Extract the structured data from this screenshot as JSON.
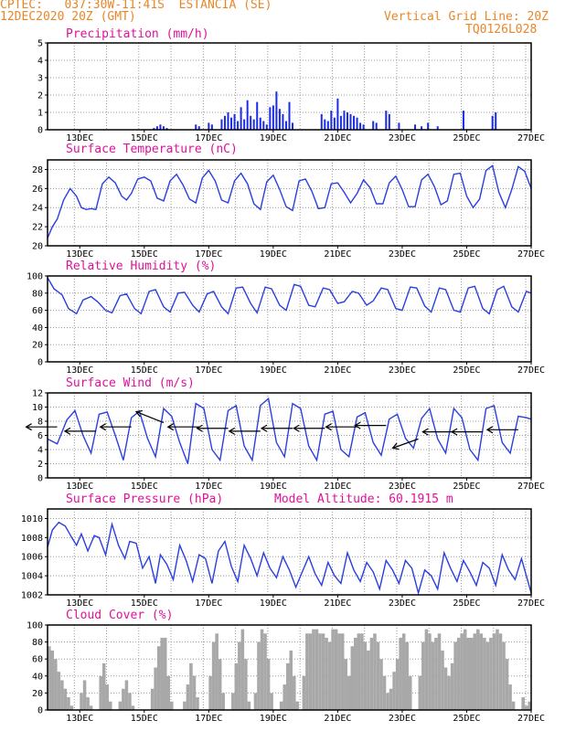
{
  "header": {
    "line1": "CPTEC:   037:30W-11:41S  ESTANCIA (SE)",
    "line2": "12DEC2020 20Z (GMT)",
    "grid_note": "Vertical Grid Line: 20Z",
    "code": "TQ0126L028"
  },
  "x_axis": {
    "day_labels": [
      "13DEC",
      "15DEC",
      "17DEC",
      "19DEC",
      "21DEC",
      "23DEC",
      "25DEC",
      "27DEC"
    ],
    "day_positions": [
      13,
      15,
      17,
      19,
      21,
      23,
      25,
      27
    ],
    "range": [
      12.0,
      27.0
    ],
    "vertical_grid_days": [
      12.83,
      13.83,
      14.83,
      15.83,
      16.83,
      17.83,
      18.83,
      19.83,
      20.83,
      21.83,
      22.83,
      23.83,
      24.83,
      25.83,
      26.83
    ]
  },
  "colors": {
    "header": "#e8862a",
    "title": "#e0119a",
    "line": "#2a3fe0",
    "bar": "#1a2ce6",
    "cloud": "#a8a8a8",
    "grid": "#9a9a9a",
    "wind_arrow": "#000000"
  },
  "chart_data": [
    {
      "type": "bar",
      "title": "Precipitation (mm/h)",
      "ylim": [
        0,
        5
      ],
      "yticks": [
        0,
        1,
        2,
        3,
        4,
        5
      ],
      "x": [
        15.3,
        15.4,
        15.5,
        15.6,
        15.7,
        16.6,
        16.7,
        17.0,
        17.1,
        17.4,
        17.5,
        17.6,
        17.7,
        17.8,
        17.9,
        18.0,
        18.1,
        18.2,
        18.3,
        18.4,
        18.5,
        18.6,
        18.7,
        18.8,
        18.9,
        19.0,
        19.1,
        19.2,
        19.3,
        19.4,
        19.5,
        19.6,
        20.5,
        20.6,
        20.7,
        20.8,
        20.9,
        21.0,
        21.1,
        21.2,
        21.3,
        21.4,
        21.5,
        21.6,
        21.7,
        21.8,
        22.1,
        22.2,
        22.5,
        22.6,
        22.9,
        23.4,
        23.6,
        23.8,
        24.1,
        24.9,
        25.8,
        25.9
      ],
      "values": [
        0.1,
        0.2,
        0.3,
        0.2,
        0.1,
        0.3,
        0.2,
        0.4,
        0.3,
        0.6,
        0.8,
        1.0,
        0.7,
        0.9,
        0.5,
        1.3,
        0.6,
        1.7,
        0.8,
        0.6,
        1.6,
        0.7,
        0.5,
        0.3,
        1.3,
        1.4,
        2.2,
        1.2,
        0.9,
        0.5,
        1.6,
        0.4,
        0.9,
        0.6,
        0.5,
        1.1,
        0.7,
        1.8,
        0.8,
        1.1,
        1.0,
        0.9,
        0.8,
        0.7,
        0.4,
        0.3,
        0.5,
        0.4,
        1.1,
        0.9,
        0.4,
        0.3,
        0.2,
        0.4,
        0.2,
        1.1,
        0.8,
        1.0
      ]
    },
    {
      "type": "line",
      "title": "Surface Temperature (nC)",
      "ylim": [
        20,
        29
      ],
      "yticks": [
        20,
        22,
        24,
        26,
        28
      ],
      "x": [
        12.0,
        12.15,
        12.3,
        12.5,
        12.7,
        12.9,
        13.05,
        13.2,
        13.35,
        13.5,
        13.7,
        13.9,
        14.1,
        14.3,
        14.45,
        14.6,
        14.8,
        15.0,
        15.2,
        15.4,
        15.6,
        15.8,
        16.0,
        16.2,
        16.4,
        16.6,
        16.8,
        17.0,
        17.2,
        17.4,
        17.6,
        17.8,
        18.0,
        18.2,
        18.4,
        18.6,
        18.8,
        19.0,
        19.2,
        19.4,
        19.6,
        19.8,
        20.0,
        20.2,
        20.4,
        20.6,
        20.8,
        21.0,
        21.2,
        21.4,
        21.6,
        21.8,
        22.0,
        22.2,
        22.4,
        22.6,
        22.8,
        23.0,
        23.2,
        23.4,
        23.6,
        23.8,
        24.0,
        24.2,
        24.4,
        24.6,
        24.8,
        25.0,
        25.2,
        25.4,
        25.6,
        25.8,
        26.0,
        26.2,
        26.4,
        26.6,
        26.8,
        27.0
      ],
      "values": [
        20.8,
        22.0,
        22.8,
        24.8,
        26.0,
        25.2,
        24.0,
        23.8,
        23.9,
        23.8,
        26.5,
        27.2,
        26.6,
        25.2,
        24.8,
        25.5,
        27.0,
        27.2,
        26.8,
        25.0,
        24.7,
        26.8,
        27.5,
        26.4,
        24.9,
        24.5,
        27.1,
        27.9,
        26.8,
        24.8,
        24.5,
        26.8,
        27.6,
        26.5,
        24.4,
        23.8,
        26.7,
        27.4,
        25.9,
        24.1,
        23.7,
        26.8,
        27.0,
        25.7,
        23.9,
        24.0,
        26.5,
        26.6,
        25.6,
        24.5,
        25.5,
        26.9,
        26.1,
        24.4,
        24.4,
        26.6,
        27.3,
        25.9,
        24.1,
        24.1,
        26.9,
        27.5,
        26.2,
        24.3,
        24.7,
        27.5,
        27.6,
        25.2,
        24.0,
        24.9,
        27.9,
        28.4,
        25.6,
        24.0,
        25.9,
        28.3,
        27.8,
        26.0
      ]
    },
    {
      "type": "line",
      "title": "Relative Humidity (%)",
      "ylim": [
        0,
        100
      ],
      "yticks": [
        0,
        20,
        40,
        60,
        80,
        100
      ],
      "x": [
        12.0,
        12.2,
        12.45,
        12.65,
        12.9,
        13.1,
        13.35,
        13.55,
        13.8,
        14.0,
        14.25,
        14.45,
        14.7,
        14.9,
        15.15,
        15.35,
        15.6,
        15.8,
        16.05,
        16.25,
        16.5,
        16.7,
        16.95,
        17.15,
        17.4,
        17.6,
        17.85,
        18.05,
        18.3,
        18.5,
        18.75,
        18.95,
        19.2,
        19.4,
        19.65,
        19.85,
        20.1,
        20.3,
        20.55,
        20.75,
        21.0,
        21.2,
        21.45,
        21.65,
        21.9,
        22.1,
        22.35,
        22.55,
        22.8,
        23.0,
        23.25,
        23.45,
        23.7,
        23.9,
        24.15,
        24.35,
        24.6,
        24.8,
        25.05,
        25.25,
        25.5,
        25.7,
        25.95,
        26.15,
        26.4,
        26.6,
        26.85,
        27.0
      ],
      "values": [
        98,
        85,
        78,
        62,
        56,
        72,
        76,
        70,
        60,
        57,
        77,
        79,
        62,
        56,
        82,
        84,
        64,
        58,
        80,
        81,
        66,
        58,
        79,
        82,
        64,
        56,
        86,
        87,
        68,
        57,
        87,
        85,
        66,
        60,
        90,
        88,
        66,
        64,
        86,
        84,
        68,
        70,
        82,
        80,
        66,
        71,
        86,
        84,
        62,
        60,
        87,
        86,
        65,
        58,
        86,
        84,
        60,
        58,
        86,
        88,
        62,
        56,
        84,
        88,
        64,
        58,
        82,
        80
      ]
    },
    {
      "type": "line",
      "title": "Surface Wind (m/s)",
      "ylim": [
        0,
        12
      ],
      "yticks": [
        0,
        2,
        4,
        6,
        8,
        10,
        12
      ],
      "x": [
        12.0,
        12.3,
        12.6,
        12.85,
        13.1,
        13.35,
        13.6,
        13.85,
        14.1,
        14.35,
        14.6,
        14.85,
        15.1,
        15.35,
        15.6,
        15.85,
        16.1,
        16.35,
        16.6,
        16.85,
        17.1,
        17.35,
        17.6,
        17.85,
        18.1,
        18.35,
        18.6,
        18.85,
        19.1,
        19.35,
        19.6,
        19.85,
        20.1,
        20.35,
        20.6,
        20.85,
        21.1,
        21.35,
        21.6,
        21.85,
        22.1,
        22.35,
        22.6,
        22.85,
        23.1,
        23.35,
        23.6,
        23.85,
        24.1,
        24.35,
        24.6,
        24.85,
        25.1,
        25.35,
        25.6,
        25.85,
        26.1,
        26.35,
        26.6,
        26.85,
        27.0
      ],
      "values": [
        5.5,
        4.8,
        8.2,
        9.5,
        6.0,
        3.5,
        9.0,
        9.3,
        6.0,
        2.5,
        8.5,
        9.4,
        5.6,
        3.0,
        9.8,
        8.7,
        5.0,
        2.0,
        10.5,
        9.8,
        4.0,
        2.5,
        9.5,
        10.2,
        4.5,
        2.5,
        10.2,
        11.2,
        5.0,
        3.0,
        10.5,
        9.8,
        4.5,
        2.5,
        9.0,
        9.4,
        4.0,
        3.0,
        8.6,
        9.2,
        5.0,
        3.2,
        8.3,
        9.0,
        5.6,
        4.2,
        8.4,
        9.8,
        5.5,
        3.5,
        9.8,
        8.5,
        4.0,
        2.5,
        9.8,
        10.2,
        5.0,
        3.5,
        8.7,
        8.5,
        8.3
      ],
      "arrows": [
        {
          "x": 12.3,
          "y": 7.2,
          "dir": "from-east"
        },
        {
          "x": 13.5,
          "y": 6.6,
          "dir": "from-east"
        },
        {
          "x": 14.6,
          "y": 7.2,
          "dir": "from-east"
        },
        {
          "x": 15.6,
          "y": 7.8,
          "dir": "from-se"
        },
        {
          "x": 16.7,
          "y": 7.2,
          "dir": "from-east"
        },
        {
          "x": 17.6,
          "y": 7.0,
          "dir": "from-east"
        },
        {
          "x": 18.6,
          "y": 6.6,
          "dir": "from-east"
        },
        {
          "x": 19.6,
          "y": 7.0,
          "dir": "from-east"
        },
        {
          "x": 20.6,
          "y": 7.0,
          "dir": "from-east"
        },
        {
          "x": 21.6,
          "y": 7.2,
          "dir": "from-east"
        },
        {
          "x": 22.5,
          "y": 7.4,
          "dir": "from-east"
        },
        {
          "x": 23.5,
          "y": 5.5,
          "dir": "from-ne"
        },
        {
          "x": 24.6,
          "y": 6.5,
          "dir": "from-east"
        },
        {
          "x": 25.5,
          "y": 6.5,
          "dir": "from-east"
        },
        {
          "x": 26.6,
          "y": 6.8,
          "dir": "from-east"
        }
      ]
    },
    {
      "type": "line",
      "title": "Surface Pressure (hPa)",
      "annotation": "Model Altitude: 60.1915 m",
      "ylim": [
        1002,
        1011
      ],
      "yticks": [
        1002,
        1004,
        1006,
        1008,
        1010
      ],
      "x": [
        12.0,
        12.15,
        12.35,
        12.55,
        12.75,
        12.9,
        13.05,
        13.25,
        13.45,
        13.6,
        13.8,
        14.0,
        14.2,
        14.4,
        14.55,
        14.75,
        14.95,
        15.15,
        15.35,
        15.5,
        15.7,
        15.9,
        16.1,
        16.3,
        16.5,
        16.7,
        16.9,
        17.1,
        17.3,
        17.5,
        17.7,
        17.9,
        18.1,
        18.3,
        18.5,
        18.7,
        18.9,
        19.1,
        19.3,
        19.5,
        19.7,
        19.9,
        20.1,
        20.3,
        20.5,
        20.7,
        20.9,
        21.1,
        21.3,
        21.5,
        21.7,
        21.9,
        22.1,
        22.3,
        22.5,
        22.7,
        22.9,
        23.1,
        23.3,
        23.5,
        23.7,
        23.9,
        24.1,
        24.3,
        24.5,
        24.7,
        24.9,
        25.1,
        25.3,
        25.5,
        25.7,
        25.9,
        26.1,
        26.3,
        26.5,
        26.7,
        26.9,
        27.0
      ],
      "values": [
        1007.0,
        1008.8,
        1009.6,
        1009.2,
        1008.0,
        1007.2,
        1008.4,
        1006.6,
        1008.2,
        1008.0,
        1006.2,
        1009.4,
        1007.2,
        1005.8,
        1007.6,
        1007.4,
        1004.8,
        1006.0,
        1003.2,
        1006.2,
        1005.2,
        1003.6,
        1007.2,
        1005.6,
        1003.4,
        1006.2,
        1005.8,
        1003.2,
        1006.6,
        1007.6,
        1005.0,
        1003.4,
        1007.2,
        1005.8,
        1004.0,
        1006.4,
        1004.8,
        1003.8,
        1006.0,
        1004.6,
        1002.8,
        1004.4,
        1006.0,
        1004.2,
        1003.0,
        1005.4,
        1004.0,
        1003.2,
        1006.4,
        1004.6,
        1003.4,
        1005.4,
        1004.4,
        1002.6,
        1005.6,
        1004.6,
        1003.2,
        1005.6,
        1004.8,
        1002.2,
        1004.6,
        1004.0,
        1002.6,
        1006.4,
        1004.8,
        1003.4,
        1005.6,
        1004.4,
        1003.0,
        1005.4,
        1004.8,
        1003.0,
        1006.2,
        1004.6,
        1003.6,
        1005.8,
        1003.4,
        1002.2
      ]
    },
    {
      "type": "bar",
      "title": "Cloud Cover (%)",
      "ylim": [
        0,
        100
      ],
      "yticks": [
        0,
        20,
        40,
        60,
        80,
        100
      ],
      "x": [
        12.0,
        12.1,
        12.2,
        12.3,
        12.4,
        12.5,
        12.6,
        12.7,
        12.8,
        12.9,
        13.0,
        13.1,
        13.2,
        13.3,
        13.4,
        13.5,
        13.6,
        13.7,
        13.8,
        13.9,
        14.0,
        14.1,
        14.2,
        14.3,
        14.4,
        14.5,
        14.6,
        14.7,
        14.8,
        14.9,
        15.0,
        15.1,
        15.2,
        15.3,
        15.4,
        15.5,
        15.6,
        15.7,
        15.8,
        15.9,
        16.0,
        16.1,
        16.2,
        16.3,
        16.4,
        16.5,
        16.6,
        16.7,
        16.8,
        16.9,
        17.0,
        17.1,
        17.2,
        17.3,
        17.4,
        17.5,
        17.6,
        17.7,
        17.8,
        17.9,
        18.0,
        18.1,
        18.2,
        18.3,
        18.4,
        18.5,
        18.6,
        18.7,
        18.8,
        18.9,
        19.0,
        19.1,
        19.2,
        19.3,
        19.4,
        19.5,
        19.6,
        19.7,
        19.8,
        19.9,
        20.0,
        20.1,
        20.2,
        20.3,
        20.4,
        20.5,
        20.6,
        20.7,
        20.8,
        20.9,
        21.0,
        21.1,
        21.2,
        21.3,
        21.4,
        21.5,
        21.6,
        21.7,
        21.8,
        21.9,
        22.0,
        22.1,
        22.2,
        22.3,
        22.4,
        22.5,
        22.6,
        22.7,
        22.8,
        22.9,
        23.0,
        23.1,
        23.2,
        23.3,
        23.4,
        23.5,
        23.6,
        23.7,
        23.8,
        23.9,
        24.0,
        24.1,
        24.2,
        24.3,
        24.4,
        24.5,
        24.6,
        24.7,
        24.8,
        24.9,
        25.0,
        25.1,
        25.2,
        25.3,
        25.4,
        25.5,
        25.6,
        25.7,
        25.8,
        25.9,
        26.0,
        26.1,
        26.2,
        26.3,
        26.4,
        26.5,
        26.6,
        26.7,
        26.8,
        26.9
      ],
      "values": [
        75,
        70,
        60,
        45,
        35,
        25,
        15,
        5,
        0,
        0,
        20,
        35,
        15,
        5,
        0,
        0,
        40,
        55,
        30,
        10,
        0,
        0,
        10,
        25,
        35,
        20,
        5,
        0,
        0,
        0,
        0,
        0,
        25,
        50,
        75,
        85,
        85,
        40,
        10,
        0,
        0,
        0,
        10,
        30,
        55,
        40,
        15,
        0,
        0,
        0,
        40,
        80,
        90,
        60,
        20,
        0,
        0,
        20,
        55,
        80,
        95,
        60,
        10,
        0,
        20,
        80,
        95,
        90,
        60,
        20,
        0,
        0,
        10,
        30,
        55,
        70,
        40,
        10,
        0,
        40,
        90,
        90,
        95,
        95,
        90,
        90,
        85,
        80,
        95,
        95,
        90,
        90,
        60,
        40,
        75,
        85,
        90,
        90,
        80,
        70,
        85,
        90,
        80,
        60,
        40,
        20,
        25,
        45,
        60,
        85,
        90,
        80,
        40,
        0,
        0,
        40,
        80,
        95,
        90,
        80,
        85,
        90,
        70,
        50,
        40,
        55,
        80,
        85,
        90,
        95,
        85,
        85,
        90,
        95,
        90,
        85,
        80,
        85,
        90,
        95,
        90,
        80,
        60,
        30,
        10,
        0,
        0,
        15,
        5,
        10
      ]
    }
  ]
}
